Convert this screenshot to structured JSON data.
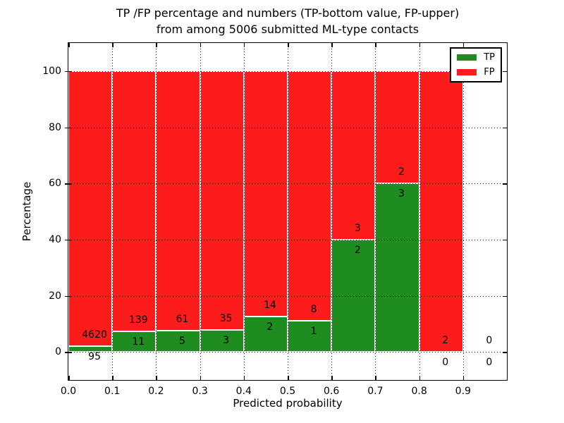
{
  "title": {
    "line1": "TP /FP percentage and numbers (TP-bottom value, FP-upper)",
    "line2": "from among 5006 submitted ML-type contacts"
  },
  "axes": {
    "xlabel": "Predicted probability",
    "ylabel": "Percentage",
    "xticklabels": [
      "0.0",
      "0.1",
      "0.2",
      "0.3",
      "0.4",
      "0.5",
      "0.6",
      "0.7",
      "0.8",
      "0.9"
    ],
    "yticks": [
      0,
      20,
      40,
      60,
      80,
      100
    ],
    "xlim": [
      0.0,
      1.0
    ],
    "ylim": [
      -10,
      110
    ],
    "grid": "dotted"
  },
  "legend": {
    "items": [
      {
        "label": "TP",
        "color": "#1e8c1e"
      },
      {
        "label": "FP",
        "color": "#fc1c1c"
      }
    ]
  },
  "colors": {
    "tp": "#1e8c1e",
    "fp": "#fc1c1c",
    "bar_edge": "#ffffff",
    "text": "#000000",
    "background": "#ffffff"
  },
  "chart_data": {
    "type": "bar",
    "stacked": true,
    "normalized_to_percent": true,
    "title": "TP /FP percentage and numbers (TP-bottom value, FP-upper) from among 5006 submitted ML-type contacts",
    "xlabel": "Predicted probability",
    "ylabel": "Percentage",
    "total_contacts": 5006,
    "bin_width": 0.1,
    "legend_position": "upper right",
    "series_order_note": "TP green on bottom, FP red stacked above; labels show raw counts (FP above boundary, TP below)",
    "bins": [
      {
        "range": "0.0-0.1",
        "tp": 95,
        "fp": 4620,
        "tp_pct": 2.01,
        "fp_pct": 97.99
      },
      {
        "range": "0.1-0.2",
        "tp": 11,
        "fp": 139,
        "tp_pct": 7.33,
        "fp_pct": 92.67
      },
      {
        "range": "0.2-0.3",
        "tp": 5,
        "fp": 61,
        "tp_pct": 7.58,
        "fp_pct": 92.42
      },
      {
        "range": "0.3-0.4",
        "tp": 3,
        "fp": 35,
        "tp_pct": 7.89,
        "fp_pct": 92.11
      },
      {
        "range": "0.4-0.5",
        "tp": 2,
        "fp": 14,
        "tp_pct": 12.5,
        "fp_pct": 87.5
      },
      {
        "range": "0.5-0.6",
        "tp": 1,
        "fp": 8,
        "tp_pct": 11.11,
        "fp_pct": 88.89
      },
      {
        "range": "0.6-0.7",
        "tp": 2,
        "fp": 3,
        "tp_pct": 40.0,
        "fp_pct": 60.0
      },
      {
        "range": "0.7-0.8",
        "tp": 3,
        "fp": 2,
        "tp_pct": 60.0,
        "fp_pct": 40.0
      },
      {
        "range": "0.8-0.9",
        "tp": 0,
        "fp": 2,
        "tp_pct": 0.0,
        "fp_pct": 100.0
      },
      {
        "range": "0.9-1.0",
        "tp": 0,
        "fp": 0,
        "tp_pct": 0.0,
        "fp_pct": 0.0
      }
    ]
  }
}
